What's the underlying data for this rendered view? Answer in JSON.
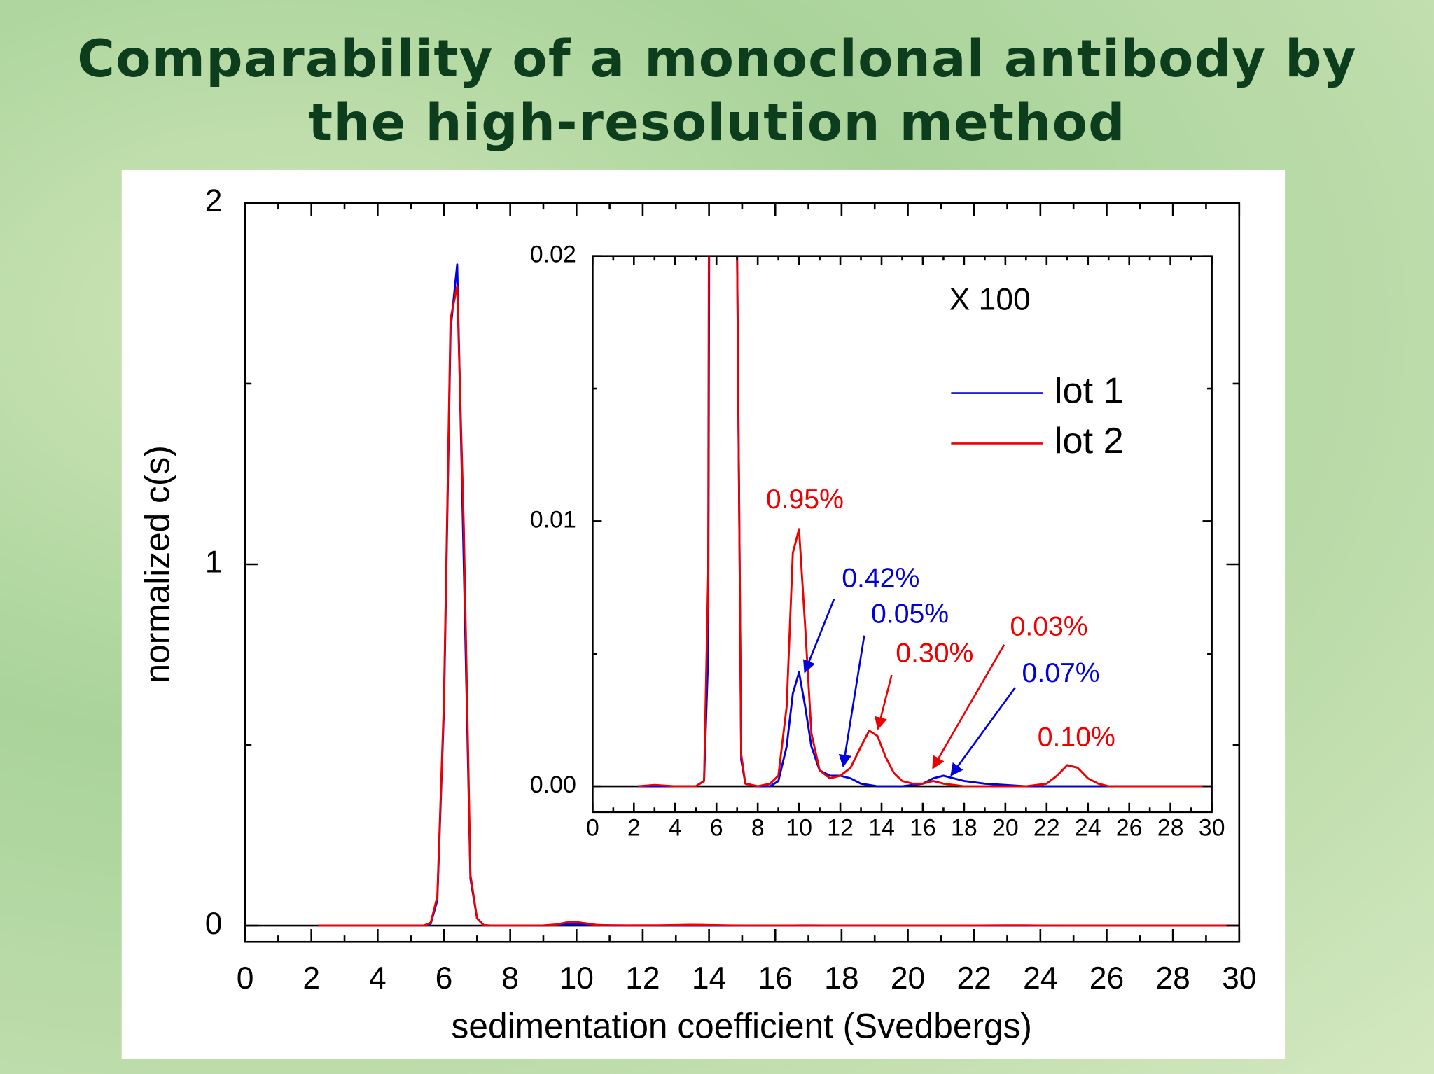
{
  "chart_data": [
    {
      "type": "line",
      "title": [
        "Comparability of a monoclonal antibody by",
        "the high-resolution method"
      ],
      "xlabel": "sedimentation coefficient (Svedbergs)",
      "ylabel": "normalized c(s)",
      "x": [
        2.2,
        3,
        4,
        5,
        5.4,
        5.6,
        5.8,
        6.0,
        6.2,
        6.4,
        6.6,
        6.8,
        7.0,
        7.2,
        7.4,
        8,
        8.6,
        9,
        9.4,
        9.7,
        10,
        10.3,
        10.6,
        11,
        11.5,
        12,
        12.5,
        13,
        13.4,
        13.8,
        14.2,
        14.6,
        15,
        15.5,
        16,
        16.5,
        17,
        17.5,
        18,
        19,
        20,
        21,
        22,
        22.5,
        23,
        23.5,
        24,
        24.5,
        25,
        26,
        28,
        30
      ],
      "series": [
        {
          "name": "lot 1",
          "color": "#0000dd",
          "values": [
            0,
            0,
            0,
            0,
            0.0002,
            0.005,
            0.07,
            0.6,
            1.65,
            1.83,
            1.0,
            0.13,
            0.02,
            0.001,
            0.0001,
            0,
            0,
            0.0002,
            0.0015,
            0.0035,
            0.0043,
            0.003,
            0.0015,
            0.0006,
            0.0004,
            0.0004,
            0.0003,
            0.0001,
            5e-05,
            0,
            0,
            0,
            0,
            5e-05,
            0.0001,
            0.0003,
            0.0004,
            0.0003,
            0.0002,
            0.0001,
            5e-05,
            0,
            0,
            0,
            0,
            0,
            0,
            0,
            0,
            0,
            0,
            0
          ]
        },
        {
          "name": "lot 2",
          "color": "#ee0000",
          "values": [
            0,
            5e-05,
            0,
            0,
            0.0002,
            0.008,
            0.08,
            0.62,
            1.68,
            1.77,
            1.1,
            0.14,
            0.02,
            0.0012,
            0.0001,
            0,
            0.0001,
            0.0004,
            0.003,
            0.0088,
            0.0097,
            0.006,
            0.002,
            0.0006,
            0.0003,
            0.0004,
            0.0007,
            0.0015,
            0.0021,
            0.0019,
            0.0011,
            0.0005,
            0.0002,
            0.0001,
            0.0001,
            0.0002,
            0.0001,
            5e-05,
            0,
            0,
            0,
            0,
            0.0001,
            0.0004,
            0.0008,
            0.0007,
            0.0003,
            0.0001,
            0,
            0,
            0,
            0
          ]
        }
      ],
      "xlim": [
        0,
        30
      ],
      "ylim": [
        -0.045,
        2
      ],
      "xticks": [
        0,
        2,
        4,
        6,
        8,
        10,
        12,
        14,
        16,
        18,
        20,
        22,
        24,
        26,
        28,
        30
      ],
      "xminorticks": [
        1,
        3,
        5,
        7,
        9,
        11,
        13,
        15,
        17,
        19,
        21,
        23,
        25,
        27,
        29
      ],
      "yticks": [
        0,
        1,
        2
      ],
      "yminorticks": [
        0.5,
        1.5
      ]
    },
    {
      "type": "inset",
      "annotation": "X 100",
      "xlim": [
        0,
        30
      ],
      "ylim": [
        -0.00097,
        0.02
      ],
      "xticks": [
        0,
        2,
        4,
        6,
        8,
        10,
        12,
        14,
        16,
        18,
        20,
        22,
        24,
        26,
        28,
        30
      ],
      "xminorticks": [
        1,
        3,
        5,
        7,
        9,
        11,
        13,
        15,
        17,
        19,
        21,
        23,
        25,
        27,
        29
      ],
      "yticks": [
        {
          "value": 0,
          "label": "0.00"
        },
        {
          "value": 0.01,
          "label": "0.01"
        },
        {
          "value": 0.02,
          "label": "0.02"
        }
      ],
      "yminorticks": [
        0.005,
        0.015
      ],
      "legend": "upper right",
      "annotations": [
        {
          "text": "0.95%",
          "color": "#ee0000"
        },
        {
          "text": "0.42%",
          "color": "#0000dd"
        },
        {
          "text": "0.05%",
          "color": "#0000dd"
        },
        {
          "text": "0.30%",
          "color": "#ee0000"
        },
        {
          "text": "0.03%",
          "color": "#ee0000"
        },
        {
          "text": "0.07%",
          "color": "#0000dd"
        },
        {
          "text": "0.10%",
          "color": "#ee0000"
        }
      ]
    }
  ]
}
